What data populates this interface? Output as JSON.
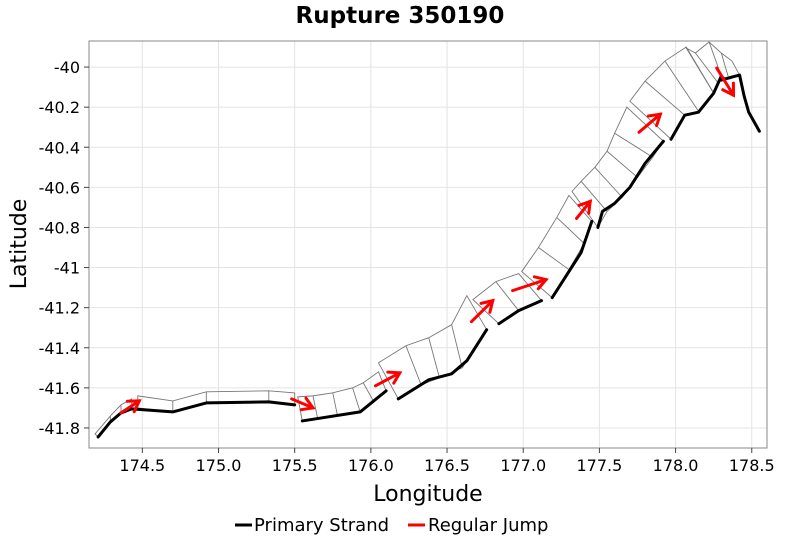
{
  "chart_data": {
    "type": "line",
    "title": "Rupture 350190",
    "xlabel": "Longitude",
    "ylabel": "Latitude",
    "xlim": [
      174.15,
      178.6
    ],
    "ylim": [
      -41.9,
      -39.87
    ],
    "x_ticks": [
      174.5,
      175.0,
      175.5,
      176.0,
      176.5,
      177.0,
      177.5,
      178.0,
      178.5
    ],
    "x_tick_labels": [
      "174.5",
      "175.0",
      "175.5",
      "176.0",
      "176.5",
      "177.0",
      "177.5",
      "178.0",
      "178.5"
    ],
    "y_ticks": [
      -40.0,
      -40.2,
      -40.4,
      -40.6,
      -40.8,
      -41.0,
      -41.2,
      -41.4,
      -41.6,
      -41.8
    ],
    "y_tick_labels": [
      "-40",
      "-40.2",
      "-40.4",
      "-40.6",
      "-40.8",
      "-41",
      "-41.2",
      "-41.4",
      "-41.6",
      "-41.8"
    ],
    "grid": true,
    "legend_position": "bottom",
    "series": [
      {
        "name": "Primary Strand",
        "color": "#000000",
        "segments": [
          [
            [
              174.21,
              -41.845
            ],
            [
              174.29,
              -41.77
            ],
            [
              174.36,
              -41.725
            ],
            [
              174.43,
              -41.705
            ],
            [
              174.7,
              -41.72
            ],
            [
              174.92,
              -41.675
            ],
            [
              175.33,
              -41.67
            ],
            [
              175.5,
              -41.685
            ]
          ],
          [
            [
              175.55,
              -41.765
            ],
            [
              175.93,
              -41.72
            ],
            [
              176.1,
              -41.615
            ]
          ],
          [
            [
              176.18,
              -41.655
            ],
            [
              176.38,
              -41.56
            ],
            [
              176.53,
              -41.53
            ],
            [
              176.63,
              -41.465
            ],
            [
              176.76,
              -41.31
            ]
          ],
          [
            [
              176.84,
              -41.28
            ],
            [
              176.97,
              -41.215
            ],
            [
              177.12,
              -41.165
            ]
          ],
          [
            [
              177.19,
              -41.15
            ],
            [
              177.38,
              -40.925
            ],
            [
              177.45,
              -40.77
            ]
          ],
          [
            [
              177.49,
              -40.8
            ],
            [
              177.52,
              -40.72
            ],
            [
              177.6,
              -40.68
            ],
            [
              177.7,
              -40.6
            ],
            [
              177.8,
              -40.48
            ],
            [
              177.92,
              -40.37
            ]
          ],
          [
            [
              177.97,
              -40.36
            ],
            [
              178.06,
              -40.24
            ],
            [
              178.15,
              -40.225
            ],
            [
              178.25,
              -40.13
            ],
            [
              178.3,
              -40.045
            ]
          ],
          [
            [
              178.3,
              -40.065
            ],
            [
              178.37,
              -40.05
            ],
            [
              178.42,
              -40.04
            ],
            [
              178.45,
              -40.145
            ],
            [
              178.48,
              -40.225
            ],
            [
              178.55,
              -40.32
            ]
          ]
        ]
      },
      {
        "name": "Regular Jump",
        "color": "#ff0000",
        "segments": [
          [
            [
              174.36,
              -41.725
            ],
            [
              174.48,
              -41.665
            ]
          ],
          [
            [
              175.48,
              -41.655
            ],
            [
              175.62,
              -41.7
            ]
          ],
          [
            [
              176.03,
              -41.59
            ],
            [
              176.19,
              -41.525
            ]
          ],
          [
            [
              176.66,
              -41.27
            ],
            [
              176.8,
              -41.165
            ]
          ],
          [
            [
              176.93,
              -41.115
            ],
            [
              177.15,
              -41.06
            ]
          ],
          [
            [
              177.35,
              -40.755
            ],
            [
              177.44,
              -40.67
            ]
          ],
          [
            [
              177.76,
              -40.325
            ],
            [
              177.9,
              -40.235
            ]
          ],
          [
            [
              178.27,
              -40.005
            ],
            [
              178.38,
              -40.14
            ]
          ]
        ]
      }
    ],
    "surface_patches": [
      {
        "top": [
          [
            174.19,
            -41.83
          ],
          [
            174.29,
            -41.74
          ],
          [
            174.36,
            -41.685
          ],
          [
            174.43,
            -41.655
          ]
        ],
        "bottom": [
          [
            174.21,
            -41.845
          ],
          [
            174.29,
            -41.77
          ],
          [
            174.36,
            -41.725
          ],
          [
            174.43,
            -41.705
          ]
        ]
      },
      {
        "top": [
          [
            174.47,
            -41.64
          ],
          [
            174.7,
            -41.665
          ],
          [
            174.92,
            -41.62
          ],
          [
            175.33,
            -41.615
          ],
          [
            175.5,
            -41.625
          ]
        ],
        "bottom": [
          [
            174.47,
            -41.7
          ],
          [
            174.7,
            -41.72
          ],
          [
            174.92,
            -41.675
          ],
          [
            175.33,
            -41.67
          ],
          [
            175.5,
            -41.685
          ]
        ]
      },
      {
        "top": [
          [
            175.52,
            -41.645
          ],
          [
            175.62,
            -41.64
          ],
          [
            175.75,
            -41.625
          ],
          [
            175.88,
            -41.6
          ],
          [
            175.95,
            -41.575
          ],
          [
            176.05,
            -41.52
          ]
        ],
        "bottom": [
          [
            175.55,
            -41.765
          ],
          [
            175.65,
            -41.75
          ],
          [
            175.78,
            -41.735
          ],
          [
            175.93,
            -41.72
          ],
          [
            176.02,
            -41.67
          ],
          [
            176.1,
            -41.615
          ]
        ]
      },
      {
        "top": [
          [
            176.05,
            -41.475
          ],
          [
            176.23,
            -41.39
          ],
          [
            176.38,
            -41.35
          ],
          [
            176.53,
            -41.285
          ],
          [
            176.63,
            -41.14
          ]
        ],
        "bottom": [
          [
            176.18,
            -41.655
          ],
          [
            176.33,
            -41.585
          ],
          [
            176.45,
            -41.55
          ],
          [
            176.6,
            -41.5
          ],
          [
            176.76,
            -41.31
          ]
        ]
      },
      {
        "top": [
          [
            176.67,
            -41.16
          ],
          [
            176.82,
            -41.07
          ],
          [
            176.97,
            -41.03
          ]
        ],
        "bottom": [
          [
            176.84,
            -41.28
          ],
          [
            176.97,
            -41.215
          ],
          [
            177.12,
            -41.165
          ]
        ]
      },
      {
        "top": [
          [
            176.99,
            -41.02
          ],
          [
            177.1,
            -40.9
          ],
          [
            177.22,
            -40.75
          ],
          [
            177.3,
            -40.64
          ]
        ],
        "bottom": [
          [
            177.19,
            -41.15
          ],
          [
            177.3,
            -41.01
          ],
          [
            177.4,
            -40.88
          ],
          [
            177.45,
            -40.77
          ]
        ]
      },
      {
        "top": [
          [
            177.32,
            -40.62
          ],
          [
            177.38,
            -40.57
          ],
          [
            177.47,
            -40.5
          ],
          [
            177.55,
            -40.42
          ],
          [
            177.6,
            -40.33
          ],
          [
            177.68,
            -40.2
          ]
        ],
        "bottom": [
          [
            177.49,
            -40.8
          ],
          [
            177.55,
            -40.72
          ],
          [
            177.65,
            -40.65
          ],
          [
            177.75,
            -40.55
          ],
          [
            177.85,
            -40.45
          ],
          [
            177.92,
            -40.37
          ]
        ]
      },
      {
        "top": [
          [
            177.7,
            -40.17
          ],
          [
            177.8,
            -40.07
          ],
          [
            177.93,
            -39.97
          ],
          [
            178.07,
            -39.9
          ]
        ],
        "bottom": [
          [
            177.97,
            -40.36
          ],
          [
            178.06,
            -40.24
          ],
          [
            178.15,
            -40.22
          ],
          [
            178.25,
            -40.13
          ]
        ]
      },
      {
        "top": [
          [
            178.07,
            -39.905
          ],
          [
            178.13,
            -39.93
          ],
          [
            178.22,
            -39.875
          ],
          [
            178.3,
            -39.93
          ],
          [
            178.37,
            -39.97
          ]
        ],
        "bottom": [
          [
            178.25,
            -40.13
          ],
          [
            178.28,
            -40.08
          ],
          [
            178.3,
            -40.045
          ],
          [
            178.35,
            -40.06
          ],
          [
            178.42,
            -40.04
          ]
        ]
      }
    ]
  }
}
